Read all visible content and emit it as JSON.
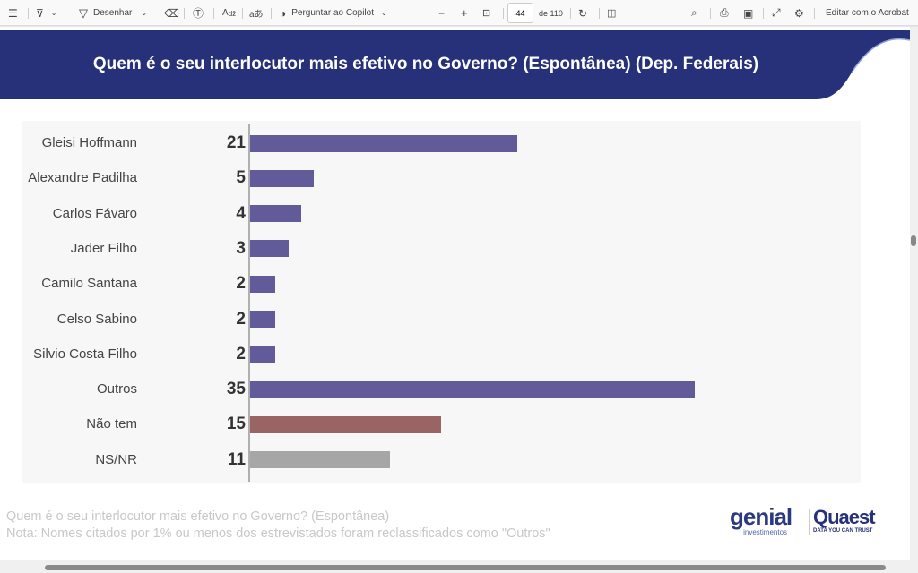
{
  "toolbar": {
    "draw_label": "Desenhar",
    "copilot_label": "Perguntar ao Copilot",
    "page_current": "44",
    "page_total": "de 110",
    "edit_label": "Editar com o Acrobat",
    "zoom_out": "−",
    "zoom_in": "+"
  },
  "slide": {
    "title": "Quem é o seu interlocutor mais efetivo no Governo? (Espontânea) (Dep. Federais)",
    "note1": "Quem é o seu interlocutor mais efetivo no Governo? (Espontânea)",
    "note2": "Nota: Nomes citados por 1% ou menos dos estrevistados foram reclassificados como \"Outros\"",
    "logo_genial": "genial",
    "logo_genial_sub": "investimentos",
    "logo_quaest": "Quaest",
    "logo_quaest_sub": "DATA YOU CAN TRUST"
  },
  "colors": {
    "banner": "#26317a",
    "bar": "#625b9a",
    "nao_tem": "#9a6464",
    "nsnr": "#a6a6a6"
  },
  "chart_data": {
    "type": "bar",
    "orientation": "horizontal",
    "categories": [
      "Gleisi Hoffmann",
      "Alexandre Padilha",
      "Carlos Fávaro",
      "Jader Filho",
      "Camilo Santana",
      "Celso Sabino",
      "Silvio Costa Filho",
      "Outros",
      "Não tem",
      "NS/NR"
    ],
    "values": [
      21,
      5,
      4,
      3,
      2,
      2,
      2,
      35,
      15,
      11
    ],
    "bar_colors": [
      "#625b9a",
      "#625b9a",
      "#625b9a",
      "#625b9a",
      "#625b9a",
      "#625b9a",
      "#625b9a",
      "#625b9a",
      "#9a6464",
      "#a6a6a6"
    ],
    "xlim": [
      0,
      35
    ]
  }
}
